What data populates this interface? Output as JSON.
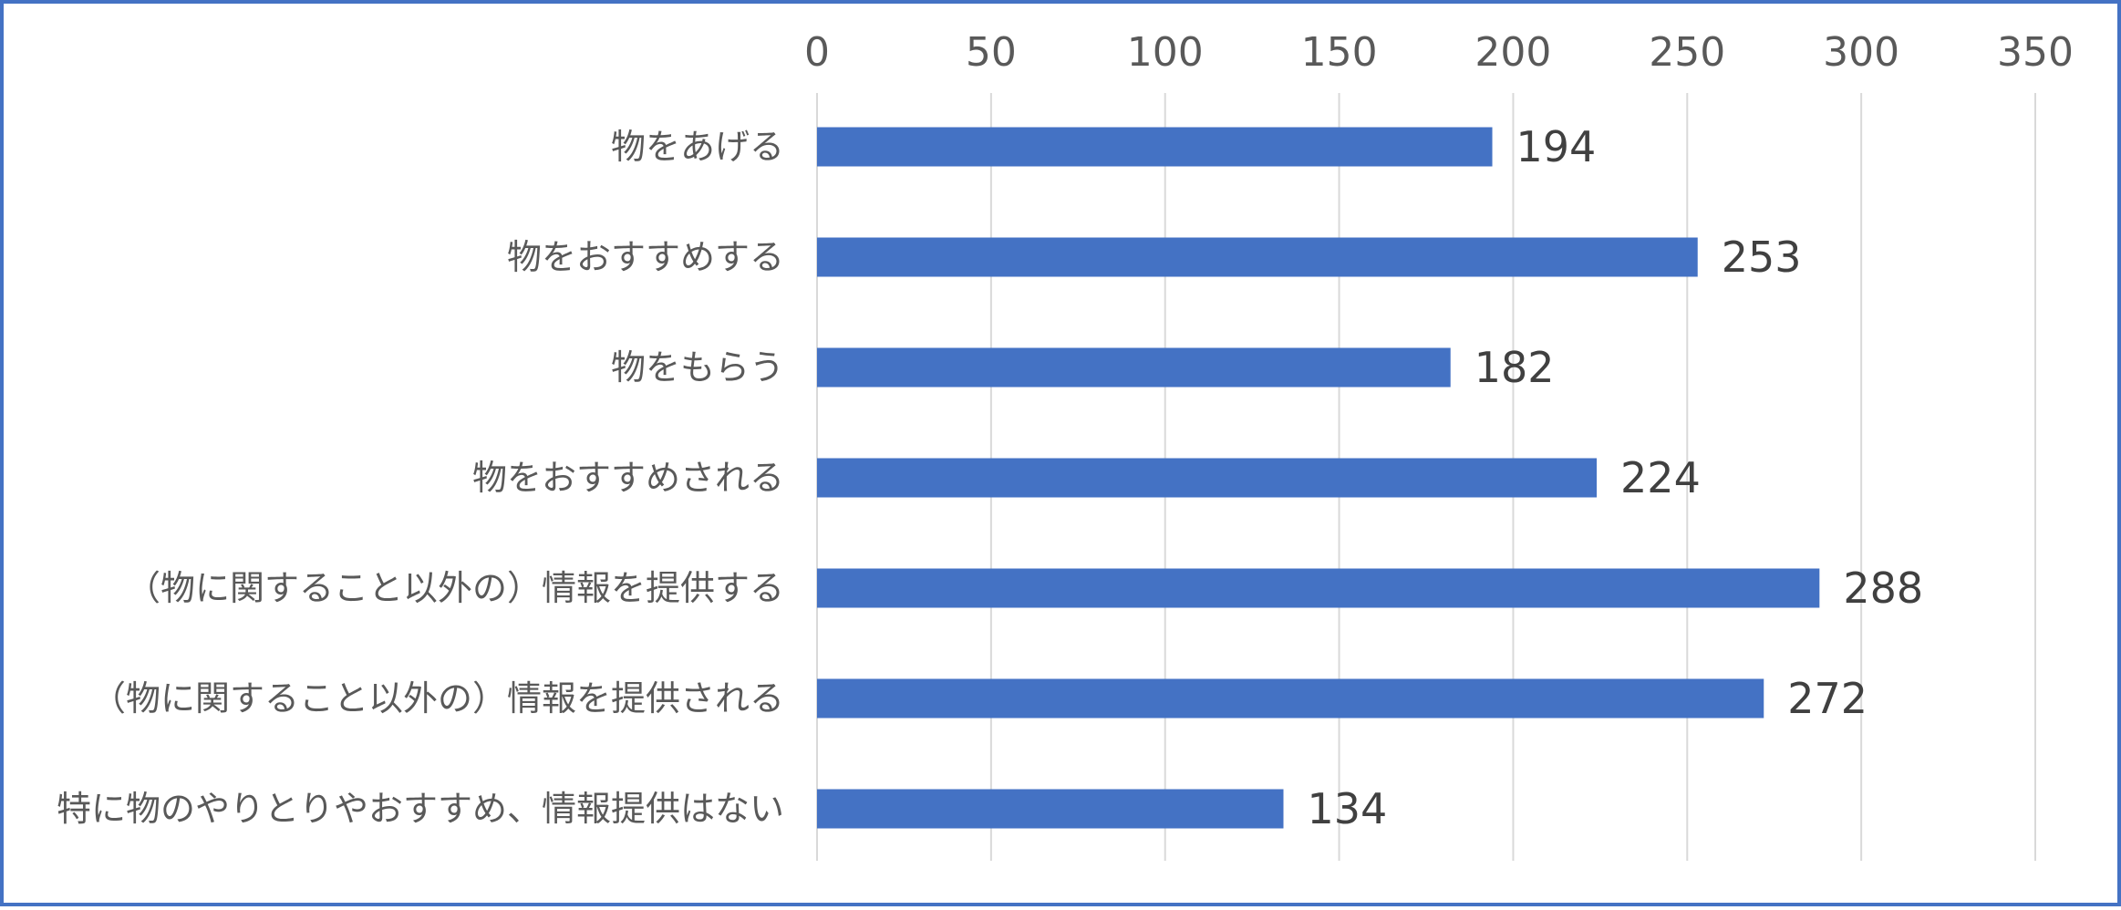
{
  "chart_data": {
    "type": "bar",
    "orientation": "horizontal",
    "categories": [
      "物をあげる",
      "物をおすすめする",
      "物をもらう",
      "物をおすすめされる",
      "（物に関すること以外の）情報を提供する",
      "（物に関すること以外の）情報を提供される",
      "特に物のやりとりやおすすめ、情報提供はない"
    ],
    "values": [
      194,
      253,
      182,
      224,
      288,
      272,
      134
    ],
    "x_ticks": [
      "0",
      "50",
      "100",
      "150",
      "200",
      "250",
      "300",
      "350"
    ],
    "xlim": [
      0,
      350
    ],
    "x_axis_position": "top",
    "grid": true,
    "data_labels": true,
    "legend": "none",
    "colors": {
      "bar": "#4472C4",
      "grid": "#D9D9D9",
      "frame": "#4472C4",
      "axis_text": "#595959",
      "data_label_text": "#404040"
    }
  }
}
